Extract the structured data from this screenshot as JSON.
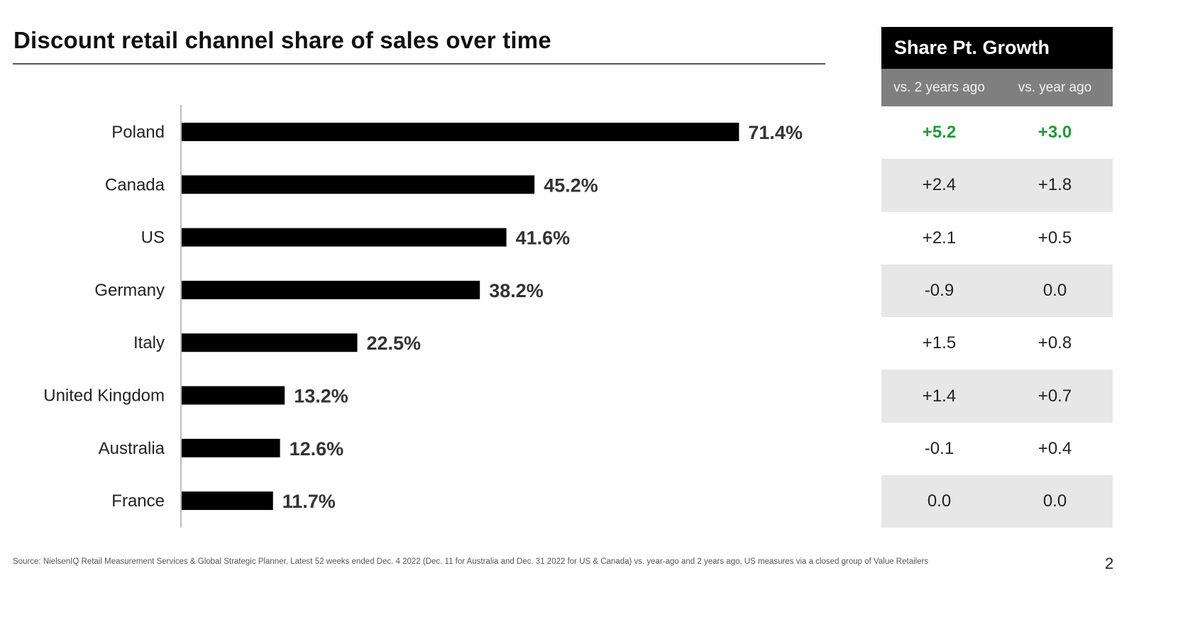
{
  "title": "Discount retail channel share of sales over time",
  "chart_data": {
    "type": "bar",
    "orientation": "horizontal",
    "title": "Discount retail channel share of sales over time",
    "categories": [
      "Poland",
      "Canada",
      "US",
      "Germany",
      "Italy",
      "United Kingdom",
      "Australia",
      "France"
    ],
    "values": [
      71.4,
      45.2,
      41.6,
      38.2,
      22.5,
      13.2,
      12.6,
      11.7
    ],
    "value_labels": [
      "71.4%",
      "45.2%",
      "41.6%",
      "38.2%",
      "22.5%",
      "13.2%",
      "12.6%",
      "11.7%"
    ],
    "unit": "%",
    "xlim": [
      0,
      80
    ],
    "xlabel": "",
    "ylabel": "",
    "grid": false,
    "bar_color": "#000000"
  },
  "growth_table": {
    "header": "Share Pt. Growth",
    "columns": [
      "vs. 2 years ago",
      "vs. year ago"
    ],
    "rows": [
      {
        "country": "Poland",
        "vs_2y": "+5.2",
        "vs_1y": "+3.0"
      },
      {
        "country": "Canada",
        "vs_2y": "+2.4",
        "vs_1y": "+1.8"
      },
      {
        "country": "US",
        "vs_2y": "+2.1",
        "vs_1y": "+0.5"
      },
      {
        "country": "Germany",
        "vs_2y": "-0.9",
        "vs_1y": "0.0"
      },
      {
        "country": "Italy",
        "vs_2y": "+1.5",
        "vs_1y": "+0.8"
      },
      {
        "country": "United Kingdom",
        "vs_2y": "+1.4",
        "vs_1y": "+0.7"
      },
      {
        "country": "Australia",
        "vs_2y": "-0.1",
        "vs_1y": "+0.4"
      },
      {
        "country": "France",
        "vs_2y": "0.0",
        "vs_1y": "0.0"
      }
    ],
    "highlight_color": "#1f9a3a"
  },
  "source": "Source: NielsenIQ Retail Measurement Services & Global Strategic Planner, Latest 52 weeks ended Dec. 4 2022 (Dec. 11 for Australia and Dec. 31 2022 for US & Canada) vs. year-ago and 2 years ago, US measures via a closed group of Value Retailers",
  "page_number": "2"
}
